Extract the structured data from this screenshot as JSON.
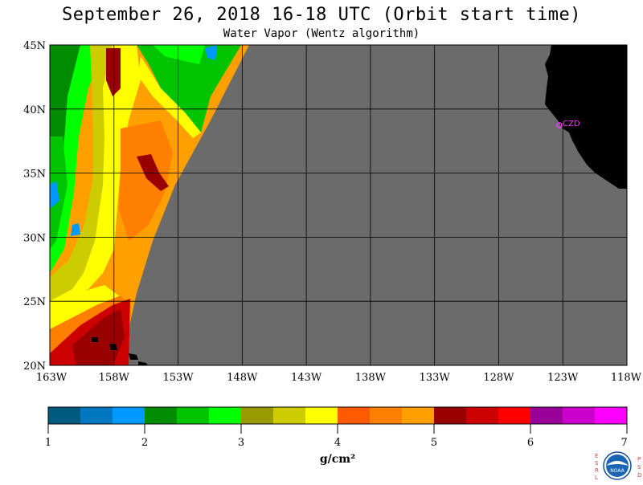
{
  "header": {
    "title": "September 26, 2018  16-18 UTC  (Orbit start time)",
    "subtitle": "Water Vapor (Wentz algorithm)"
  },
  "map": {
    "lat_labels": [
      "45N",
      "40N",
      "35N",
      "30N",
      "25N",
      "20N"
    ],
    "lon_labels": [
      "163W",
      "158W",
      "153W",
      "148W",
      "143W",
      "138W",
      "133W",
      "128W",
      "123W",
      "118W"
    ],
    "station_label": "CZD",
    "colors": {
      "no_data": "#6b6b6b",
      "land": "#000000",
      "grid": "#000000",
      "station": "#ff33ff"
    }
  },
  "colorbar": {
    "ticks": [
      "1",
      "2",
      "3",
      "4",
      "5",
      "6",
      "7"
    ],
    "unit": "g/cm²",
    "colors": [
      "#005a80",
      "#0077c0",
      "#0099ff",
      "#008c00",
      "#00c400",
      "#00ff00",
      "#999900",
      "#cccc00",
      "#ffff00",
      "#ff5a00",
      "#ff7f00",
      "#ffa000",
      "#990000",
      "#cc0000",
      "#ff0000",
      "#990099",
      "#cc00cc",
      "#ff00ff"
    ]
  },
  "logo": {
    "letters_left": [
      "E",
      "S",
      "R",
      "L"
    ],
    "letters_right": [
      "P",
      "S",
      "D"
    ],
    "center_text": "NOAA"
  }
}
